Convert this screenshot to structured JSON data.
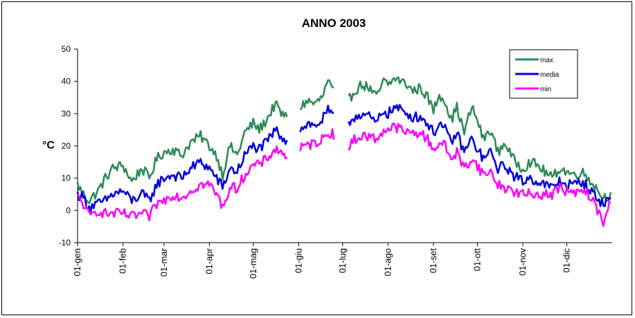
{
  "chart_data": {
    "type": "line",
    "title": "ANNO 2003",
    "xlabel": "",
    "ylabel": "°C",
    "ylim": [
      -10,
      50
    ],
    "yticks": [
      -10,
      0,
      10,
      20,
      30,
      40,
      50
    ],
    "x_tick_labels": [
      "01-gen",
      "01-feb",
      "01-mar",
      "01-apr",
      "01-mag",
      "01-giu",
      "01-lug",
      "01-ago",
      "01-set",
      "01-ott",
      "01-nov",
      "01-dic"
    ],
    "x_tick_days": [
      1,
      32,
      60,
      91,
      121,
      152,
      182,
      213,
      244,
      274,
      305,
      335
    ],
    "x_range_days": [
      1,
      366
    ],
    "legend_position": "top-right",
    "grid": false,
    "gaps_days": [
      [
        144,
        153
      ],
      [
        176,
        186
      ]
    ],
    "series": [
      {
        "name": "max",
        "color": "#2e8b57",
        "x": [
          1,
          5,
          9,
          15,
          20,
          25,
          32,
          38,
          45,
          50,
          55,
          60,
          66,
          72,
          78,
          85,
          91,
          96,
          100,
          105,
          110,
          115,
          121,
          125,
          130,
          136,
          140,
          143,
          153,
          158,
          163,
          168,
          172,
          175,
          186,
          190,
          195,
          200,
          205,
          210,
          213,
          218,
          222,
          226,
          230,
          235,
          240,
          244,
          248,
          252,
          256,
          260,
          265,
          270,
          274,
          278,
          283,
          288,
          293,
          298,
          305,
          310,
          315,
          320,
          325,
          330,
          335,
          340,
          345,
          350,
          355,
          360,
          365
        ],
        "values": [
          8,
          5,
          3,
          6,
          10,
          13,
          14,
          9,
          13,
          10,
          16,
          18,
          19,
          17,
          21,
          23,
          20,
          17,
          11,
          20,
          17,
          24,
          27,
          25,
          28,
          33,
          30,
          29,
          32,
          34,
          33,
          35,
          40,
          37,
          34,
          37,
          39,
          38,
          35,
          40,
          39,
          41,
          40,
          39,
          37,
          38,
          35,
          31,
          36,
          34,
          28,
          32,
          24,
          32,
          28,
          22,
          25,
          18,
          21,
          16,
          13,
          15,
          14,
          12,
          10,
          13,
          12,
          11,
          12,
          10,
          7,
          4,
          5
        ]
      },
      {
        "name": "media",
        "color": "#0000dd",
        "x": [
          1,
          5,
          9,
          15,
          20,
          25,
          32,
          38,
          45,
          50,
          55,
          60,
          66,
          72,
          78,
          85,
          91,
          96,
          100,
          105,
          110,
          115,
          121,
          125,
          130,
          136,
          140,
          143,
          153,
          158,
          163,
          168,
          172,
          175,
          186,
          190,
          195,
          200,
          205,
          210,
          213,
          218,
          222,
          226,
          230,
          235,
          240,
          244,
          248,
          252,
          256,
          260,
          265,
          270,
          274,
          278,
          283,
          288,
          293,
          298,
          305,
          310,
          315,
          320,
          325,
          330,
          335,
          340,
          345,
          350,
          355,
          360,
          365
        ],
        "values": [
          5,
          4,
          1,
          2,
          3,
          5,
          6,
          3,
          5,
          3,
          8,
          10,
          11,
          10,
          13,
          15,
          13,
          10,
          7,
          13,
          12,
          17,
          20,
          19,
          21,
          25,
          23,
          22,
          25,
          27,
          26,
          28,
          31,
          29,
          27,
          29,
          30,
          29,
          27,
          31,
          30,
          32,
          31,
          30,
          29,
          29,
          27,
          24,
          27,
          25,
          21,
          24,
          18,
          22,
          19,
          16,
          18,
          13,
          14,
          11,
          9,
          10,
          9,
          8,
          7,
          9,
          8,
          8,
          9,
          7,
          4,
          2,
          4
        ]
      },
      {
        "name": "min",
        "color": "#ff00ff",
        "x": [
          1,
          5,
          9,
          15,
          20,
          25,
          32,
          38,
          45,
          50,
          55,
          60,
          66,
          72,
          78,
          85,
          91,
          96,
          100,
          105,
          110,
          115,
          121,
          125,
          130,
          136,
          140,
          143,
          153,
          158,
          163,
          168,
          172,
          175,
          186,
          190,
          195,
          200,
          205,
          210,
          213,
          218,
          222,
          226,
          230,
          235,
          240,
          244,
          248,
          252,
          256,
          260,
          265,
          270,
          274,
          278,
          283,
          288,
          293,
          298,
          305,
          310,
          315,
          320,
          325,
          330,
          335,
          340,
          345,
          350,
          355,
          360,
          365
        ],
        "values": [
          4,
          2,
          -2,
          0,
          -1,
          -1,
          -1,
          -2,
          -1,
          -2,
          2,
          3,
          5,
          4,
          6,
          8,
          8,
          5,
          1,
          7,
          7,
          11,
          14,
          14,
          16,
          19,
          18,
          17,
          19,
          20,
          21,
          22,
          24,
          24,
          19,
          22,
          23,
          23,
          22,
          25,
          25,
          26,
          25,
          24,
          24,
          24,
          22,
          19,
          21,
          20,
          16,
          18,
          13,
          16,
          14,
          11,
          12,
          8,
          7,
          6,
          5,
          5,
          5,
          5,
          5,
          7,
          6,
          5,
          6,
          5,
          1,
          -4,
          3
        ]
      }
    ]
  }
}
